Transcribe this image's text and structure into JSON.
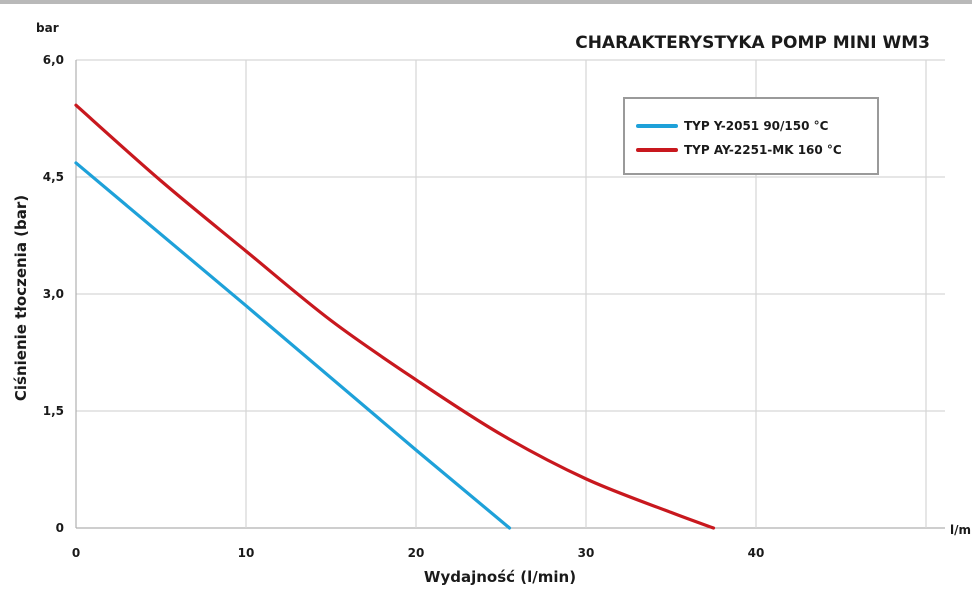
{
  "chart_data": {
    "type": "line",
    "title": "CHARAKTERYSTYKA POMP MINI WM3",
    "xlabel": "Wydajność (l/min)",
    "ylabel": "Ciśnienie tłoczenia (bar)",
    "y_unit": "bar",
    "x_unit": "l/m",
    "xlim": [
      0,
      50
    ],
    "ylim": [
      0,
      6.0
    ],
    "x_ticks": [
      "0",
      "10",
      "20",
      "30",
      "40"
    ],
    "y_ticks": [
      "0",
      "1,5",
      "3,0",
      "4,5",
      "6,0"
    ],
    "x_tick_values": [
      0,
      10,
      20,
      30,
      40
    ],
    "y_tick_values": [
      0,
      1.5,
      3.0,
      4.5,
      6.0
    ],
    "grid": true,
    "legend_position": "top-right",
    "series": [
      {
        "name": "TYP Y-2051  90/150 °C",
        "color": "#1ea1d9",
        "x": [
          0,
          10,
          20,
          25.5
        ],
        "y": [
          4.68,
          2.85,
          1.0,
          0
        ]
      },
      {
        "name": "TYP AY-2251-MK  160 °C",
        "color": "#c8181e",
        "x": [
          0,
          5,
          10,
          15,
          20,
          25,
          30,
          35,
          37.5
        ],
        "y": [
          5.42,
          4.45,
          3.55,
          2.66,
          1.9,
          1.2,
          0.63,
          0.2,
          0
        ]
      }
    ]
  }
}
